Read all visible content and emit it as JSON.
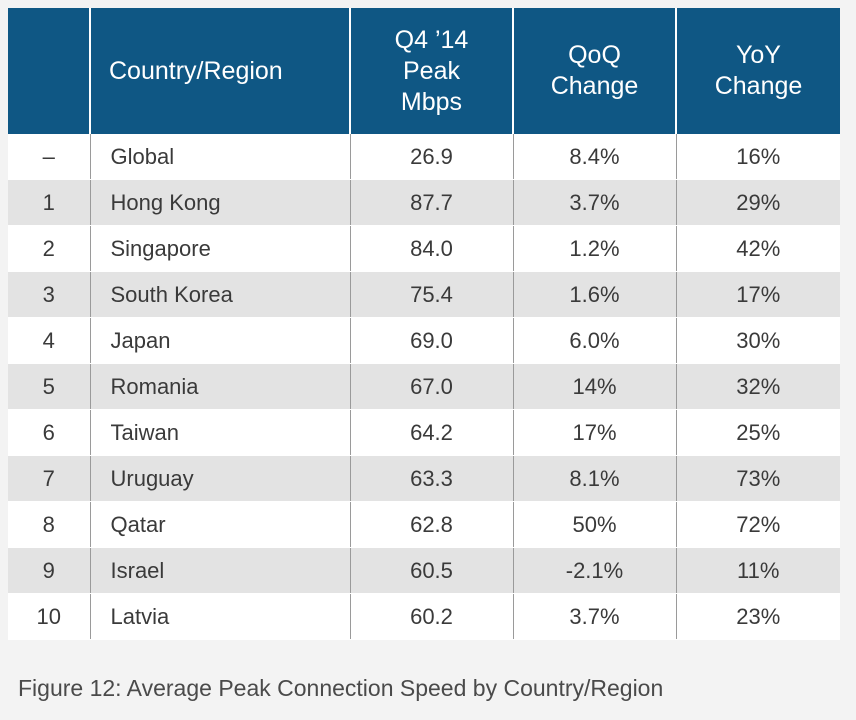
{
  "table": {
    "headers": {
      "rank": "",
      "country": "Country/Region",
      "peak": "Q4 ’14\nPeak\nMbps",
      "qoq": "QoQ\nChange",
      "yoy": "YoY\nChange"
    },
    "rows": [
      {
        "rank": "–",
        "country": "Global",
        "peak": "26.9",
        "qoq": "8.4%",
        "yoy": "16%"
      },
      {
        "rank": "1",
        "country": "Hong Kong",
        "peak": "87.7",
        "qoq": "3.7%",
        "yoy": "29%"
      },
      {
        "rank": "2",
        "country": "Singapore",
        "peak": "84.0",
        "qoq": "1.2%",
        "yoy": "42%"
      },
      {
        "rank": "3",
        "country": "South Korea",
        "peak": "75.4",
        "qoq": "1.6%",
        "yoy": "17%"
      },
      {
        "rank": "4",
        "country": "Japan",
        "peak": "69.0",
        "qoq": "6.0%",
        "yoy": "30%"
      },
      {
        "rank": "5",
        "country": "Romania",
        "peak": "67.0",
        "qoq": "14%",
        "yoy": "32%"
      },
      {
        "rank": "6",
        "country": "Taiwan",
        "peak": "64.2",
        "qoq": "17%",
        "yoy": "25%"
      },
      {
        "rank": "7",
        "country": "Uruguay",
        "peak": "63.3",
        "qoq": "8.1%",
        "yoy": "73%"
      },
      {
        "rank": "8",
        "country": "Qatar",
        "peak": "62.8",
        "qoq": "50%",
        "yoy": "72%"
      },
      {
        "rank": "9",
        "country": "Israel",
        "peak": "60.5",
        "qoq": "-2.1%",
        "yoy": "11%"
      },
      {
        "rank": "10",
        "country": "Latvia",
        "peak": "60.2",
        "qoq": "3.7%",
        "yoy": "23%"
      }
    ]
  },
  "caption": "Figure 12: Average Peak Connection Speed by Country/Region",
  "colors": {
    "header_bg": "#0f5784",
    "row_alt": "#e3e3e3",
    "row_base": "#ffffff"
  },
  "chart_data": {
    "type": "table",
    "title": "Figure 12: Average Peak Connection Speed by Country/Region",
    "columns": [
      "",
      "Country/Region",
      "Q4 ’14 Peak Mbps",
      "QoQ Change",
      "YoY Change"
    ],
    "rows": [
      [
        "–",
        "Global",
        "26.9",
        "8.4%",
        "16%"
      ],
      [
        "1",
        "Hong Kong",
        "87.7",
        "3.7%",
        "29%"
      ],
      [
        "2",
        "Singapore",
        "84.0",
        "1.2%",
        "42%"
      ],
      [
        "3",
        "South Korea",
        "75.4",
        "1.6%",
        "17%"
      ],
      [
        "4",
        "Japan",
        "69.0",
        "6.0%",
        "30%"
      ],
      [
        "5",
        "Romania",
        "67.0",
        "14%",
        "32%"
      ],
      [
        "6",
        "Taiwan",
        "64.2",
        "17%",
        "25%"
      ],
      [
        "7",
        "Uruguay",
        "63.3",
        "8.1%",
        "73%"
      ],
      [
        "8",
        "Qatar",
        "62.8",
        "50%",
        "72%"
      ],
      [
        "9",
        "Israel",
        "60.5",
        "-2.1%",
        "11%"
      ],
      [
        "10",
        "Latvia",
        "60.2",
        "3.7%",
        "23%"
      ]
    ]
  }
}
